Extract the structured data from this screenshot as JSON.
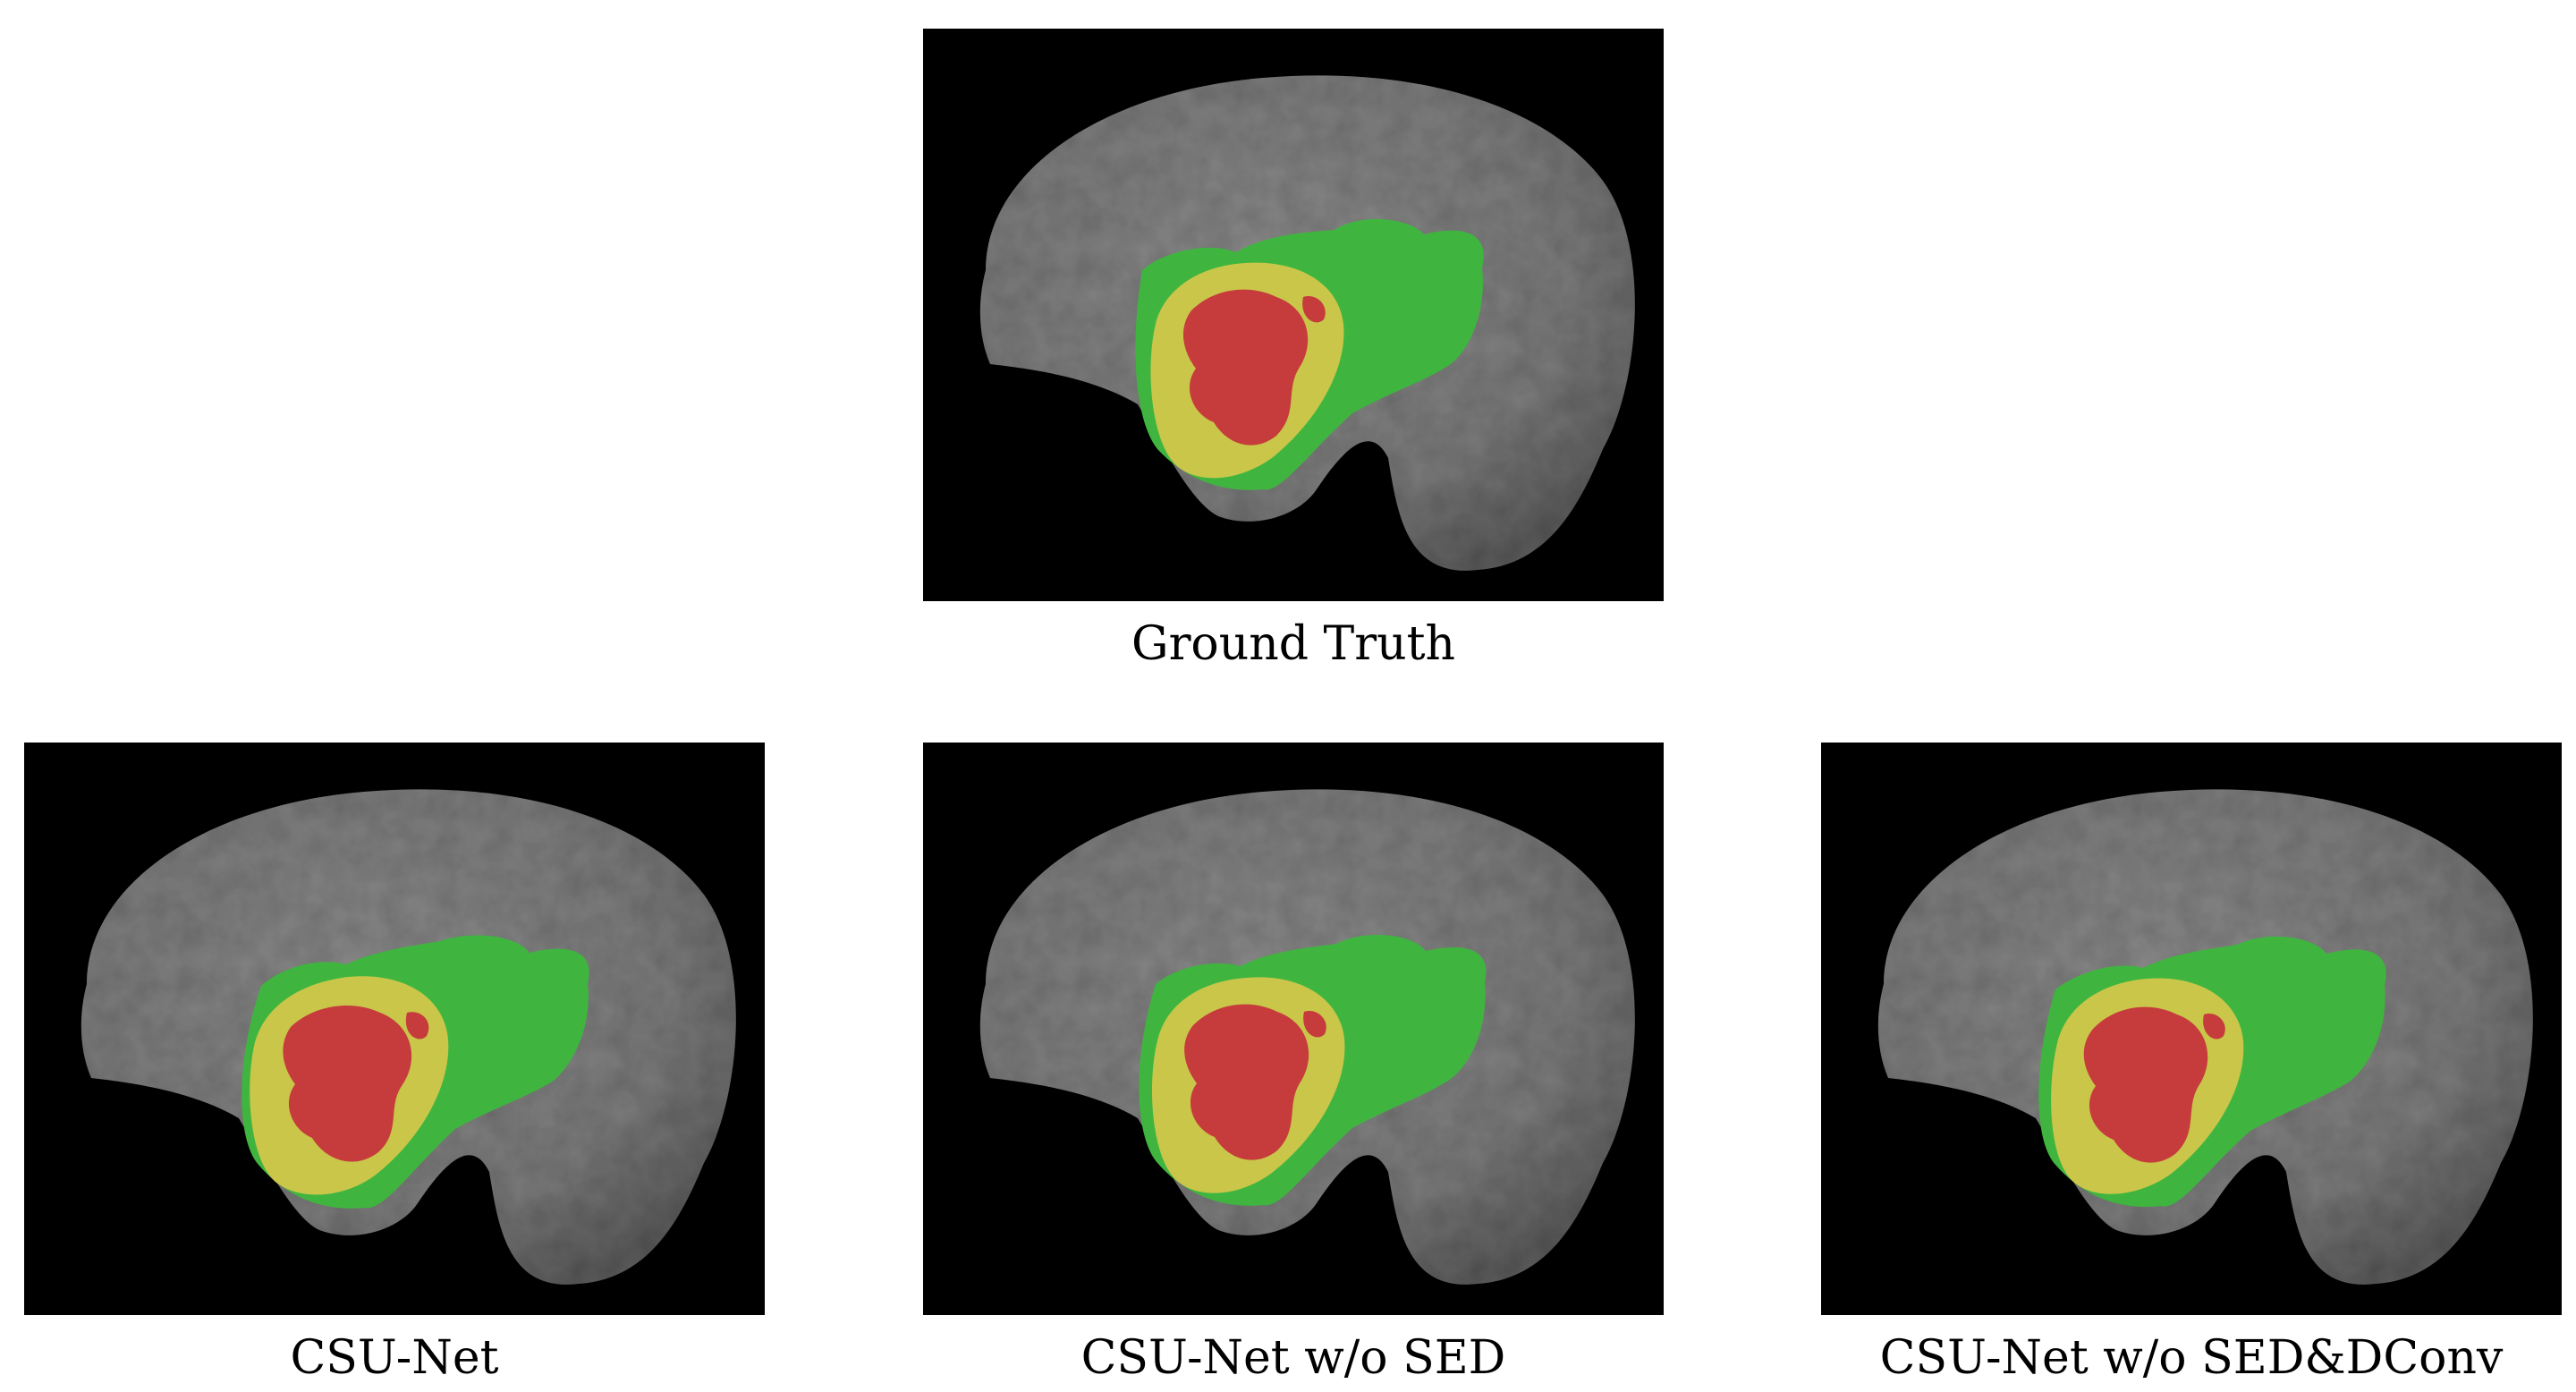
{
  "colors": {
    "background": "#000000",
    "brain": "#7c7c7c",
    "edema": "#3fb53f",
    "enhancing_tumor": "#c9c64a",
    "necrotic_core": "#c63c3c"
  },
  "panels": [
    {
      "id": "ground_truth",
      "caption": "Ground Truth"
    },
    {
      "id": "csu_net",
      "caption": "CSU-Net"
    },
    {
      "id": "csu_net_wo_sed",
      "caption": "CSU-Net w/o SED"
    },
    {
      "id": "csu_net_wo_sed_dconv",
      "caption": "CSU-Net w/o SED&DConv"
    }
  ]
}
